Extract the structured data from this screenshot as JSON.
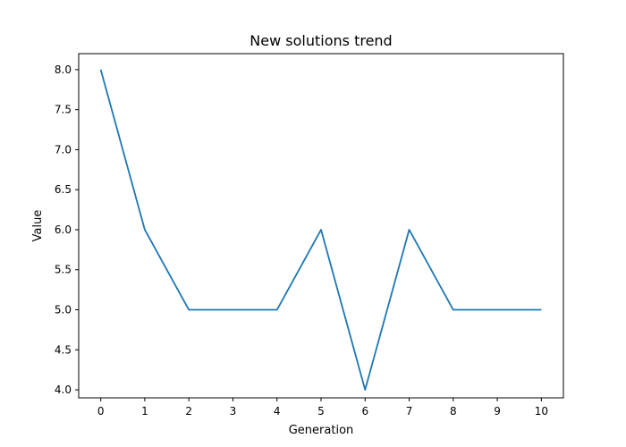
{
  "chart_data": {
    "type": "line",
    "title": "New solutions trend",
    "xlabel": "Generation",
    "ylabel": "Value",
    "x": [
      0,
      1,
      2,
      3,
      4,
      5,
      6,
      7,
      8,
      9,
      10
    ],
    "series": [
      {
        "values": [
          8,
          6,
          5,
          5,
          5,
          6,
          4,
          6,
          5,
          5,
          5
        ],
        "color": "#1f77b4"
      }
    ],
    "xlim": [
      -0.5,
      10.5
    ],
    "ylim": [
      3.9,
      8.2
    ],
    "x_ticks": [
      0,
      1,
      2,
      3,
      4,
      5,
      6,
      7,
      8,
      9,
      10
    ],
    "x_tick_labels": [
      "0",
      "1",
      "2",
      "3",
      "4",
      "5",
      "6",
      "7",
      "8",
      "9",
      "10"
    ],
    "y_ticks": [
      4.0,
      4.5,
      5.0,
      5.5,
      6.0,
      6.5,
      7.0,
      7.5,
      8.0
    ],
    "y_tick_labels": [
      "4.0",
      "4.5",
      "5.0",
      "5.5",
      "6.0",
      "6.5",
      "7.0",
      "7.5",
      "8.0"
    ],
    "grid": false,
    "legend": "none"
  }
}
